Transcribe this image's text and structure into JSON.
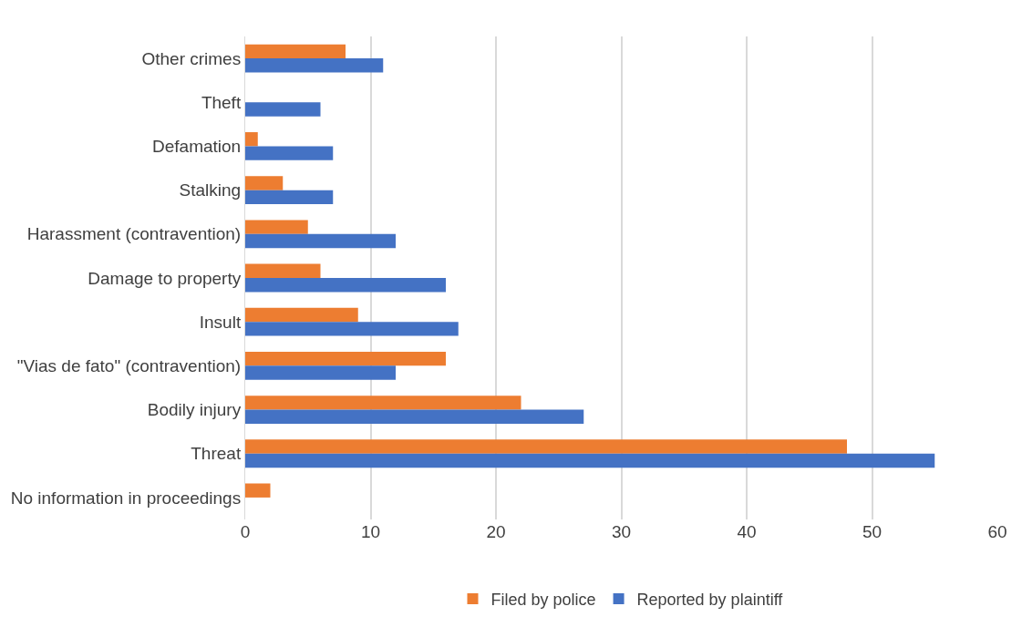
{
  "chart_data": {
    "type": "bar",
    "orientation": "horizontal",
    "categories": [
      "Other crimes",
      "Theft",
      "Defamation",
      "Stalking",
      "Harassment (contravention)",
      "Damage to property",
      "Insult",
      "\"Vias de fato\" (contravention)",
      "Bodily injury",
      "Threat",
      "No information in proceedings"
    ],
    "series": [
      {
        "name": "Filed by police",
        "color": "#ed7d31",
        "values": [
          8,
          0,
          1,
          3,
          5,
          6,
          9,
          16,
          22,
          48,
          2
        ]
      },
      {
        "name": "Reported by plaintiff",
        "color": "#4472c4",
        "values": [
          11,
          6,
          7,
          7,
          12,
          16,
          17,
          12,
          27,
          55,
          0
        ]
      }
    ],
    "xlim": [
      0,
      60
    ],
    "xticks": [
      0,
      10,
      20,
      30,
      40,
      50,
      60
    ],
    "grid": "x",
    "legend": "bottom"
  }
}
